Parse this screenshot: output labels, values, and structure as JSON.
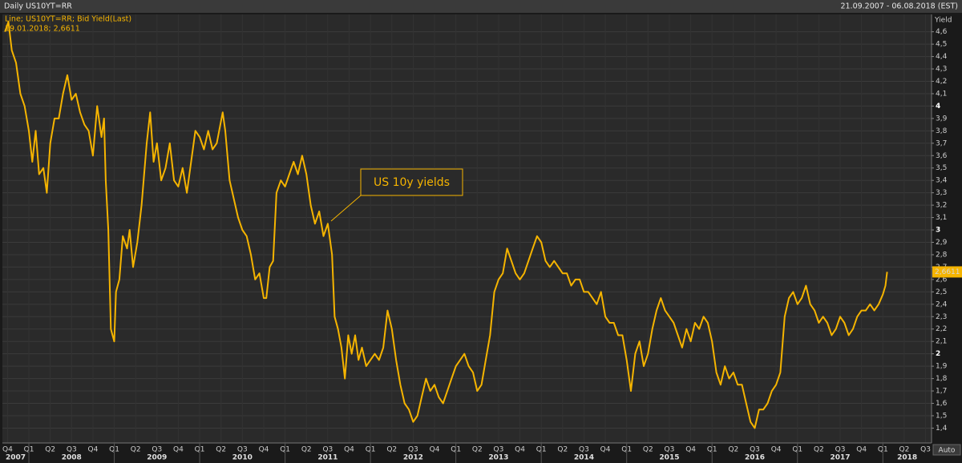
{
  "chart_data": {
    "type": "line",
    "title": "Daily US10YT=RR",
    "subtitle": "21.09.2007 - 06.08.2018 (EST)",
    "y_label": "Yield",
    "legend_detail": "19.01.2018; 2,6611",
    "last_value_label": "2,6611",
    "annotation": "US 10y yields",
    "scale_button": "Auto",
    "grid": true,
    "xlim": [
      2007.69,
      2018.57
    ],
    "ylim": [
      1.28,
      4.74
    ],
    "x": [
      2007.72,
      2007.76,
      2007.8,
      2007.85,
      2007.9,
      2007.95,
      2008.0,
      2008.04,
      2008.08,
      2008.12,
      2008.17,
      2008.21,
      2008.25,
      2008.3,
      2008.35,
      2008.4,
      2008.45,
      2008.5,
      2008.55,
      2008.6,
      2008.65,
      2008.7,
      2008.75,
      2008.8,
      2008.85,
      2008.88,
      2008.9,
      2008.93,
      2008.96,
      2009.0,
      2009.02,
      2009.06,
      2009.1,
      2009.15,
      2009.18,
      2009.22,
      2009.27,
      2009.32,
      2009.38,
      2009.42,
      2009.46,
      2009.5,
      2009.55,
      2009.6,
      2009.65,
      2009.7,
      2009.75,
      2009.8,
      2009.85,
      2009.9,
      2009.95,
      2010.0,
      2010.05,
      2010.1,
      2010.15,
      2010.2,
      2010.27,
      2010.3,
      2010.35,
      2010.4,
      2010.45,
      2010.5,
      2010.55,
      2010.6,
      2010.65,
      2010.7,
      2010.75,
      2010.78,
      2010.82,
      2010.86,
      2010.9,
      2010.95,
      2011.0,
      2011.05,
      2011.1,
      2011.15,
      2011.2,
      2011.25,
      2011.3,
      2011.35,
      2011.4,
      2011.45,
      2011.5,
      2011.55,
      2011.58,
      2011.62,
      2011.66,
      2011.7,
      2011.74,
      2011.78,
      2011.82,
      2011.86,
      2011.9,
      2011.95,
      2012.0,
      2012.05,
      2012.1,
      2012.15,
      2012.2,
      2012.25,
      2012.3,
      2012.35,
      2012.4,
      2012.45,
      2012.5,
      2012.55,
      2012.6,
      2012.65,
      2012.7,
      2012.75,
      2012.8,
      2012.85,
      2012.9,
      2012.95,
      2013.0,
      2013.05,
      2013.1,
      2013.15,
      2013.2,
      2013.25,
      2013.3,
      2013.35,
      2013.4,
      2013.45,
      2013.5,
      2013.55,
      2013.6,
      2013.65,
      2013.7,
      2013.75,
      2013.8,
      2013.85,
      2013.9,
      2013.95,
      2014.0,
      2014.05,
      2014.1,
      2014.15,
      2014.2,
      2014.25,
      2014.3,
      2014.35,
      2014.4,
      2014.45,
      2014.5,
      2014.55,
      2014.6,
      2014.65,
      2014.7,
      2014.75,
      2014.8,
      2014.85,
      2014.9,
      2014.95,
      2015.0,
      2015.05,
      2015.1,
      2015.15,
      2015.2,
      2015.25,
      2015.3,
      2015.35,
      2015.4,
      2015.45,
      2015.5,
      2015.55,
      2015.6,
      2015.65,
      2015.7,
      2015.75,
      2015.8,
      2015.85,
      2015.9,
      2015.95,
      2016.0,
      2016.05,
      2016.1,
      2016.15,
      2016.2,
      2016.25,
      2016.3,
      2016.35,
      2016.4,
      2016.45,
      2016.5,
      2016.55,
      2016.6,
      2016.65,
      2016.7,
      2016.75,
      2016.8,
      2016.85,
      2016.9,
      2016.95,
      2017.0,
      2017.05,
      2017.1,
      2017.15,
      2017.2,
      2017.25,
      2017.3,
      2017.35,
      2017.4,
      2017.45,
      2017.5,
      2017.55,
      2017.6,
      2017.65,
      2017.7,
      2017.75,
      2017.8,
      2017.85,
      2017.9,
      2017.95,
      2018.0,
      2018.03,
      2018.05
    ],
    "series": [
      {
        "name": "Line; US10YT=RR; Bid Yield(Last)",
        "color": "#f5b400",
        "values": [
          4.6,
          4.68,
          4.45,
          4.35,
          4.1,
          4.0,
          3.8,
          3.55,
          3.8,
          3.45,
          3.5,
          3.3,
          3.7,
          3.9,
          3.9,
          4.1,
          4.25,
          4.05,
          4.1,
          3.95,
          3.85,
          3.8,
          3.6,
          4.0,
          3.75,
          3.9,
          3.4,
          3.0,
          2.2,
          2.1,
          2.5,
          2.6,
          2.95,
          2.85,
          3.0,
          2.7,
          2.9,
          3.2,
          3.7,
          3.95,
          3.55,
          3.7,
          3.4,
          3.5,
          3.7,
          3.4,
          3.35,
          3.5,
          3.3,
          3.55,
          3.8,
          3.75,
          3.65,
          3.8,
          3.65,
          3.7,
          3.95,
          3.8,
          3.4,
          3.25,
          3.1,
          3.0,
          2.95,
          2.8,
          2.6,
          2.65,
          2.45,
          2.45,
          2.7,
          2.75,
          3.3,
          3.4,
          3.35,
          3.45,
          3.55,
          3.45,
          3.6,
          3.45,
          3.2,
          3.05,
          3.15,
          2.95,
          3.05,
          2.8,
          2.3,
          2.2,
          2.05,
          1.8,
          2.15,
          2.0,
          2.15,
          1.95,
          2.05,
          1.9,
          1.95,
          2.0,
          1.95,
          2.05,
          2.35,
          2.2,
          1.95,
          1.75,
          1.6,
          1.55,
          1.45,
          1.5,
          1.65,
          1.8,
          1.7,
          1.75,
          1.65,
          1.6,
          1.7,
          1.8,
          1.9,
          1.95,
          2.0,
          1.9,
          1.85,
          1.7,
          1.75,
          1.95,
          2.15,
          2.5,
          2.6,
          2.65,
          2.85,
          2.75,
          2.65,
          2.6,
          2.65,
          2.75,
          2.85,
          2.95,
          2.9,
          2.75,
          2.7,
          2.75,
          2.7,
          2.65,
          2.65,
          2.55,
          2.6,
          2.6,
          2.5,
          2.5,
          2.45,
          2.4,
          2.5,
          2.3,
          2.25,
          2.25,
          2.15,
          2.15,
          1.95,
          1.7,
          2.0,
          2.1,
          1.9,
          2.0,
          2.2,
          2.35,
          2.45,
          2.35,
          2.3,
          2.25,
          2.15,
          2.05,
          2.2,
          2.1,
          2.25,
          2.2,
          2.3,
          2.25,
          2.1,
          1.85,
          1.75,
          1.9,
          1.8,
          1.85,
          1.75,
          1.75,
          1.6,
          1.45,
          1.4,
          1.55,
          1.55,
          1.6,
          1.7,
          1.75,
          1.85,
          2.3,
          2.45,
          2.5,
          2.4,
          2.45,
          2.55,
          2.4,
          2.35,
          2.25,
          2.3,
          2.25,
          2.15,
          2.2,
          2.3,
          2.25,
          2.15,
          2.2,
          2.3,
          2.35,
          2.35,
          2.4,
          2.35,
          2.4,
          2.48,
          2.55,
          2.6611
        ]
      }
    ],
    "yticks": [
      {
        "value": 1.4,
        "label": "1,4"
      },
      {
        "value": 1.5,
        "label": "1,5"
      },
      {
        "value": 1.6,
        "label": "1,6"
      },
      {
        "value": 1.7,
        "label": "1,7"
      },
      {
        "value": 1.8,
        "label": "1,8"
      },
      {
        "value": 1.9,
        "label": "1,9"
      },
      2,
      {
        "value": 2.1,
        "label": "2,1"
      },
      {
        "value": 2.2,
        "label": "2,2"
      },
      {
        "value": 2.3,
        "label": "2,3"
      },
      {
        "value": 2.4,
        "label": "2,4"
      },
      {
        "value": 2.5,
        "label": "2,5"
      },
      {
        "value": 2.6,
        "label": "2,6"
      },
      {
        "value": 2.7,
        "label": "2,7"
      },
      {
        "value": 2.8,
        "label": "2,8"
      },
      {
        "value": 2.9,
        "label": "2,9"
      },
      3,
      {
        "value": 3.1,
        "label": "3,1"
      },
      {
        "value": 3.2,
        "label": "3,2"
      },
      {
        "value": 3.3,
        "label": "3,3"
      },
      {
        "value": 3.4,
        "label": "3,4"
      },
      {
        "value": 3.5,
        "label": "3,5"
      },
      {
        "value": 3.6,
        "label": "3,6"
      },
      {
        "value": 3.7,
        "label": "3,7"
      },
      {
        "value": 3.8,
        "label": "3,8"
      },
      {
        "value": 3.9,
        "label": "3,9"
      },
      4,
      {
        "value": 4.1,
        "label": "4,1"
      },
      {
        "value": 4.2,
        "label": "4,2"
      },
      {
        "value": 4.3,
        "label": "4,3"
      },
      {
        "value": 4.4,
        "label": "4,4"
      },
      {
        "value": 4.5,
        "label": "4,5"
      },
      {
        "value": 4.6,
        "label": "4,6"
      }
    ],
    "xticks": [
      {
        "value": 2007.75,
        "label": "Q4"
      },
      {
        "value": 2008,
        "label": "Q1"
      },
      {
        "value": 2008.25,
        "label": "Q2"
      },
      {
        "value": 2008.5,
        "label": "Q3"
      },
      {
        "value": 2008.75,
        "label": "Q4"
      },
      {
        "value": 2009,
        "label": "Q1"
      },
      {
        "value": 2009.25,
        "label": "Q2"
      },
      {
        "value": 2009.5,
        "label": "Q3"
      },
      {
        "value": 2009.75,
        "label": "Q4"
      },
      {
        "value": 2010,
        "label": "Q1"
      },
      {
        "value": 2010.25,
        "label": "Q2"
      },
      {
        "value": 2010.5,
        "label": "Q3"
      },
      {
        "value": 2010.75,
        "label": "Q4"
      },
      {
        "value": 2011,
        "label": "Q1"
      },
      {
        "value": 2011.25,
        "label": "Q2"
      },
      {
        "value": 2011.5,
        "label": "Q3"
      },
      {
        "value": 2011.75,
        "label": "Q4"
      },
      {
        "value": 2012,
        "label": "Q1"
      },
      {
        "value": 2012.25,
        "label": "Q2"
      },
      {
        "value": 2012.5,
        "label": "Q3"
      },
      {
        "value": 2012.75,
        "label": "Q4"
      },
      {
        "value": 2013,
        "label": "Q1"
      },
      {
        "value": 2013.25,
        "label": "Q2"
      },
      {
        "value": 2013.5,
        "label": "Q3"
      },
      {
        "value": 2013.75,
        "label": "Q4"
      },
      {
        "value": 2014,
        "label": "Q1"
      },
      {
        "value": 2014.25,
        "label": "Q2"
      },
      {
        "value": 2014.5,
        "label": "Q3"
      },
      {
        "value": 2014.75,
        "label": "Q4"
      },
      {
        "value": 2015,
        "label": "Q1"
      },
      {
        "value": 2015.25,
        "label": "Q2"
      },
      {
        "value": 2015.5,
        "label": "Q3"
      },
      {
        "value": 2015.75,
        "label": "Q4"
      },
      {
        "value": 2016,
        "label": "Q1"
      },
      {
        "value": 2016.25,
        "label": "Q2"
      },
      {
        "value": 2016.5,
        "label": "Q3"
      },
      {
        "value": 2016.75,
        "label": "Q4"
      },
      {
        "value": 2017,
        "label": "Q1"
      },
      {
        "value": 2017.25,
        "label": "Q2"
      },
      {
        "value": 2017.5,
        "label": "Q3"
      },
      {
        "value": 2017.75,
        "label": "Q4"
      },
      {
        "value": 2018,
        "label": "Q1"
      },
      {
        "value": 2018.25,
        "label": "Q2"
      },
      {
        "value": 2018.5,
        "label": "Q3"
      }
    ],
    "year_ticks": [
      2007,
      2008,
      2009,
      2010,
      2011,
      2012,
      2013,
      2014,
      2015,
      2016,
      2017,
      2018
    ]
  }
}
